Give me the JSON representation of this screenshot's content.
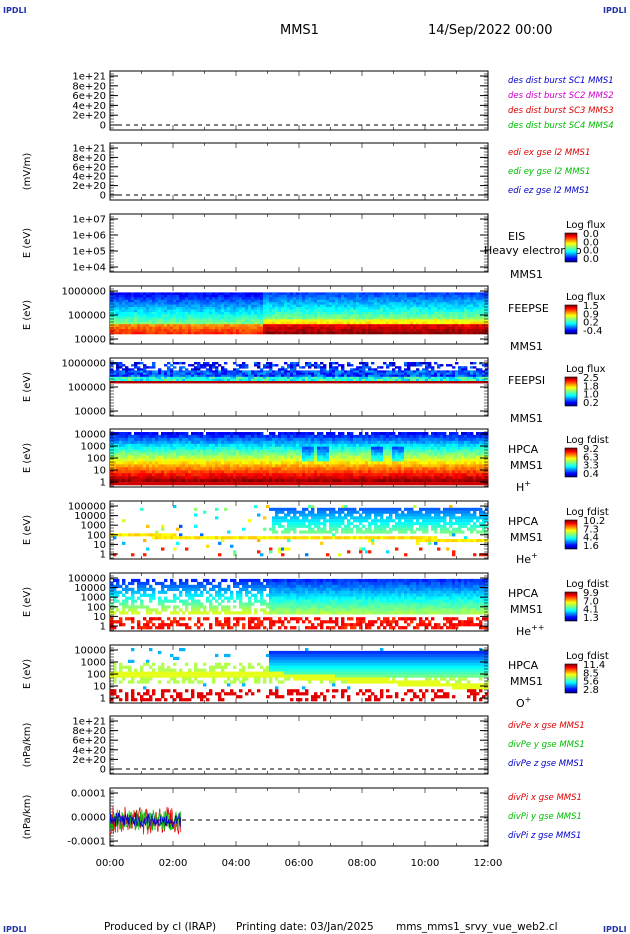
{
  "header": {
    "corner_label": "IPDLI",
    "spacecraft": "MMS1",
    "date_time": "14/Sep/2022 00:00"
  },
  "footer": {
    "produced_by": "Produced by cl (IRAP)",
    "printing_date": "Printing date: 03/Jan/2025",
    "file_name": "mms_mms1_srvy_vue_web2.cl"
  },
  "x_axis": {
    "ticks": [
      "00:00",
      "02:00",
      "04:00",
      "06:00",
      "08:00",
      "10:00",
      "12:00"
    ]
  },
  "chart_data": [
    {
      "type": "line",
      "panel": 1,
      "ylabel": "",
      "yticks": [
        "1e+21",
        "8e+20",
        "6e+20",
        "4e+20",
        "2e+20",
        "0"
      ],
      "ylim": [
        0,
        1e+21
      ],
      "zero_line": "dashed",
      "series": [
        {
          "name": "des dist burst SC1 MMS1",
          "color": "#0000cc",
          "values": []
        },
        {
          "name": "des dist burst SC2 MMS2",
          "color": "#cc00cc",
          "values": []
        },
        {
          "name": "des dist burst SC3 MMS3",
          "color": "#dd0000",
          "values": []
        },
        {
          "name": "des dist burst SC4 MMS4",
          "color": "#00bb00",
          "values": []
        }
      ]
    },
    {
      "type": "line",
      "panel": 2,
      "ylabel": "(mV/m)",
      "yticks": [
        "1e+21",
        "8e+20",
        "6e+20",
        "4e+20",
        "2e+20",
        "0"
      ],
      "ylim": [
        0,
        1e+21
      ],
      "zero_line": "dashed",
      "series": [
        {
          "name": "edi ex gse l2 MMS1",
          "color": "#dd0000",
          "values": []
        },
        {
          "name": "edi ey gse l2 MMS1",
          "color": "#00bb00",
          "values": []
        },
        {
          "name": "edi ez gse l2 MMS1",
          "color": "#0000cc",
          "values": []
        }
      ]
    },
    {
      "type": "heatmap",
      "panel": 3,
      "ylabel": "E (eV)",
      "yticks": [
        "1e+07",
        "1e+06",
        "1e+05",
        "1e+04"
      ],
      "scale": "log",
      "instrument": "EIS",
      "overlay_text": "Heavy electron to",
      "spacecraft": "MMS1",
      "colorbar": {
        "title": "Log flux",
        "values": [
          "0.0",
          "0.0",
          "0.0",
          "0.0"
        ]
      }
    },
    {
      "type": "heatmap",
      "panel": 4,
      "ylabel": "E (eV)",
      "yticks": [
        "1000000",
        "100000",
        "10000"
      ],
      "scale": "log",
      "instrument": "FEEPSE",
      "spacecraft": "MMS1",
      "colorbar": {
        "title": "Log flux",
        "values": [
          "1.5",
          "0.9",
          "0.2",
          "-0.4"
        ]
      }
    },
    {
      "type": "heatmap",
      "panel": 5,
      "ylabel": "E (eV)",
      "yticks": [
        "1000000",
        "100000",
        "10000"
      ],
      "scale": "log",
      "instrument": "FEEPSI",
      "spacecraft": "MMS1",
      "colorbar": {
        "title": "Log flux",
        "values": [
          "2.5",
          "1.8",
          "1.0",
          "0.2"
        ]
      }
    },
    {
      "type": "heatmap",
      "panel": 6,
      "ylabel": "E (eV)",
      "yticks": [
        "10000",
        "1000",
        "100",
        "10",
        "1"
      ],
      "scale": "log",
      "instrument": "HPCA",
      "spacecraft": "MMS1",
      "species": "H",
      "species_charge": "+",
      "colorbar": {
        "title": "Log fdist",
        "values": [
          "9.2",
          "6.3",
          "3.3",
          "0.4"
        ]
      }
    },
    {
      "type": "heatmap",
      "panel": 7,
      "ylabel": "E (eV)",
      "yticks": [
        "100000",
        "10000",
        "1000",
        "100",
        "10",
        "1"
      ],
      "scale": "log",
      "instrument": "HPCA",
      "spacecraft": "MMS1",
      "species": "He",
      "species_charge": "+",
      "colorbar": {
        "title": "Log fdist",
        "values": [
          "10.2",
          "7.3",
          "4.4",
          "1.6"
        ]
      }
    },
    {
      "type": "heatmap",
      "panel": 8,
      "ylabel": "E (eV)",
      "yticks": [
        "100000",
        "10000",
        "1000",
        "100",
        "10",
        "1"
      ],
      "scale": "log",
      "instrument": "HPCA",
      "spacecraft": "MMS1",
      "species": "He",
      "species_charge": "++",
      "colorbar": {
        "title": "Log fdist",
        "values": [
          "9.9",
          "7.0",
          "4.1",
          "1.3"
        ]
      }
    },
    {
      "type": "heatmap",
      "panel": 9,
      "ylabel": "E (eV)",
      "yticks": [
        "10000",
        "1000",
        "100",
        "10",
        "1"
      ],
      "scale": "log",
      "instrument": "HPCA",
      "spacecraft": "MMS1",
      "species": "O",
      "species_charge": "+",
      "colorbar": {
        "title": "Log fdist",
        "values": [
          "11.4",
          "8.5",
          "5.6",
          "2.8"
        ]
      }
    },
    {
      "type": "line",
      "panel": 10,
      "ylabel": "(nPa/km)",
      "yticks": [
        "1e+21",
        "8e+20",
        "6e+20",
        "4e+20",
        "2e+20",
        "0"
      ],
      "ylim": [
        0,
        1e+21
      ],
      "zero_line": "dashed",
      "series": [
        {
          "name": "divPe x gse MMS1",
          "color": "#dd0000",
          "values": []
        },
        {
          "name": "divPe y gse MMS1",
          "color": "#00bb00",
          "values": []
        },
        {
          "name": "divPe z gse MMS1",
          "color": "#0000cc",
          "values": []
        }
      ]
    },
    {
      "type": "line",
      "panel": 11,
      "ylabel": "(nPa/km)",
      "yticks": [
        "0.0001",
        "0.0000",
        "-0.0001"
      ],
      "ylim": [
        -0.00016,
        0.00016
      ],
      "xlim_hours": [
        0,
        12
      ],
      "data_extent_hours": [
        0,
        2.25
      ],
      "zero_line": "dashed",
      "series": [
        {
          "name": "divPi x gse MMS1",
          "color": "#dd0000",
          "amplitude": 8e-05
        },
        {
          "name": "divPi y gse MMS1",
          "color": "#00bb00",
          "amplitude": 6e-05
        },
        {
          "name": "divPi z gse MMS1",
          "color": "#0000cc",
          "amplitude": 4e-05
        }
      ]
    }
  ]
}
